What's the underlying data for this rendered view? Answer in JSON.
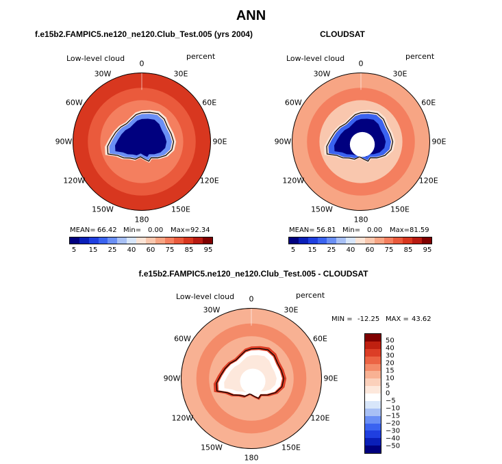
{
  "title": "ANN",
  "palettes": {
    "abs": [
      "#00007f",
      "#0a1fb8",
      "#1f3fe0",
      "#3a63f0",
      "#6a8ff5",
      "#a8c0f5",
      "#d8e6fa",
      "#fbe4d6",
      "#f9c7ae",
      "#f7a584",
      "#f47f5f",
      "#ea5a3c",
      "#d8371f",
      "#b81b12",
      "#7f0000"
    ],
    "diff": [
      "#00007f",
      "#0a1fb8",
      "#1f3fe0",
      "#3a63f0",
      "#6a8ff5",
      "#a8c0f5",
      "#d8e6fa",
      "#ffffff",
      "#fde8dc",
      "#fbd0bb",
      "#f8b193",
      "#f48b69",
      "#ec6444",
      "#dc3e26",
      "#bf2010",
      "#7f0000"
    ]
  },
  "chart_data": [
    {
      "type": "heatmap",
      "id": "model",
      "title": "f.e15b2.FAMPIC5.ne120_ne120.Club_Test.005 (yrs 2004)",
      "left_label": "Low-level cloud",
      "right_label": "percent",
      "lon_labels": [
        "0",
        "30E",
        "60E",
        "90E",
        "120E",
        "150E",
        "180",
        "150W",
        "120W",
        "90W",
        "60W",
        "30W"
      ],
      "stats": {
        "mean_label": "MEAN=",
        "mean": "66.42",
        "min_label": "Min=",
        "min": "0.00",
        "max_label": "Max=",
        "max": "92.34"
      },
      "colorbar_ticks": [
        "5",
        "15",
        "25",
        "40",
        "60",
        "75",
        "85",
        "95"
      ],
      "polar_hole": false,
      "values": {
        "ocean_outer": 82,
        "ocean_mid": 75,
        "ocean_inner": 65,
        "antarctica_interior": 3,
        "antarctica_edge": 20,
        "antarctica_coast": 45
      }
    },
    {
      "type": "heatmap",
      "id": "obs",
      "title": "CLOUDSAT",
      "left_label": "Low-level cloud",
      "right_label": "percent",
      "lon_labels": [
        "0",
        "30E",
        "60E",
        "90E",
        "120E",
        "150E",
        "180",
        "150W",
        "120W",
        "90W",
        "60W",
        "30W"
      ],
      "stats": {
        "mean_label": "MEAN=",
        "mean": "56.81",
        "min_label": "Min=",
        "min": "0.00",
        "max_label": "Max=",
        "max": "81.59"
      },
      "colorbar_ticks": [
        "5",
        "15",
        "25",
        "40",
        "60",
        "75",
        "85",
        "95"
      ],
      "polar_hole": true,
      "values": {
        "ocean_outer": 62,
        "ocean_mid": 70,
        "ocean_inner": 55,
        "antarctica_interior": 3,
        "antarctica_edge": 15,
        "antarctica_coast": 40
      }
    },
    {
      "type": "heatmap",
      "id": "diff",
      "title": "f.e15b2.FAMPIC5.ne120_ne120.Club_Test.005 - CLOUDSAT",
      "left_label": "Low-level cloud",
      "right_label": "percent",
      "lon_labels": [
        "0",
        "30E",
        "60E",
        "90E",
        "120E",
        "150E",
        "180",
        "150W",
        "120W",
        "90W",
        "60W",
        "30W"
      ],
      "stats": {
        "min_label": "MIN =",
        "min": "-12.25",
        "max_label": "MAX =",
        "max": "43.62"
      },
      "colorbar_ticks": [
        "50",
        "40",
        "30",
        "20",
        "15",
        "10",
        "5",
        "0",
        "−5",
        "−10",
        "−15",
        "−20",
        "−30",
        "−40",
        "−50"
      ],
      "polar_hole": true,
      "values": {
        "ocean_outer": 12,
        "ocean_mid": 15,
        "ocean_inner": 10,
        "antarctica_interior": 2,
        "antarctica_edge": -5,
        "antarctica_coast": 30
      }
    }
  ]
}
